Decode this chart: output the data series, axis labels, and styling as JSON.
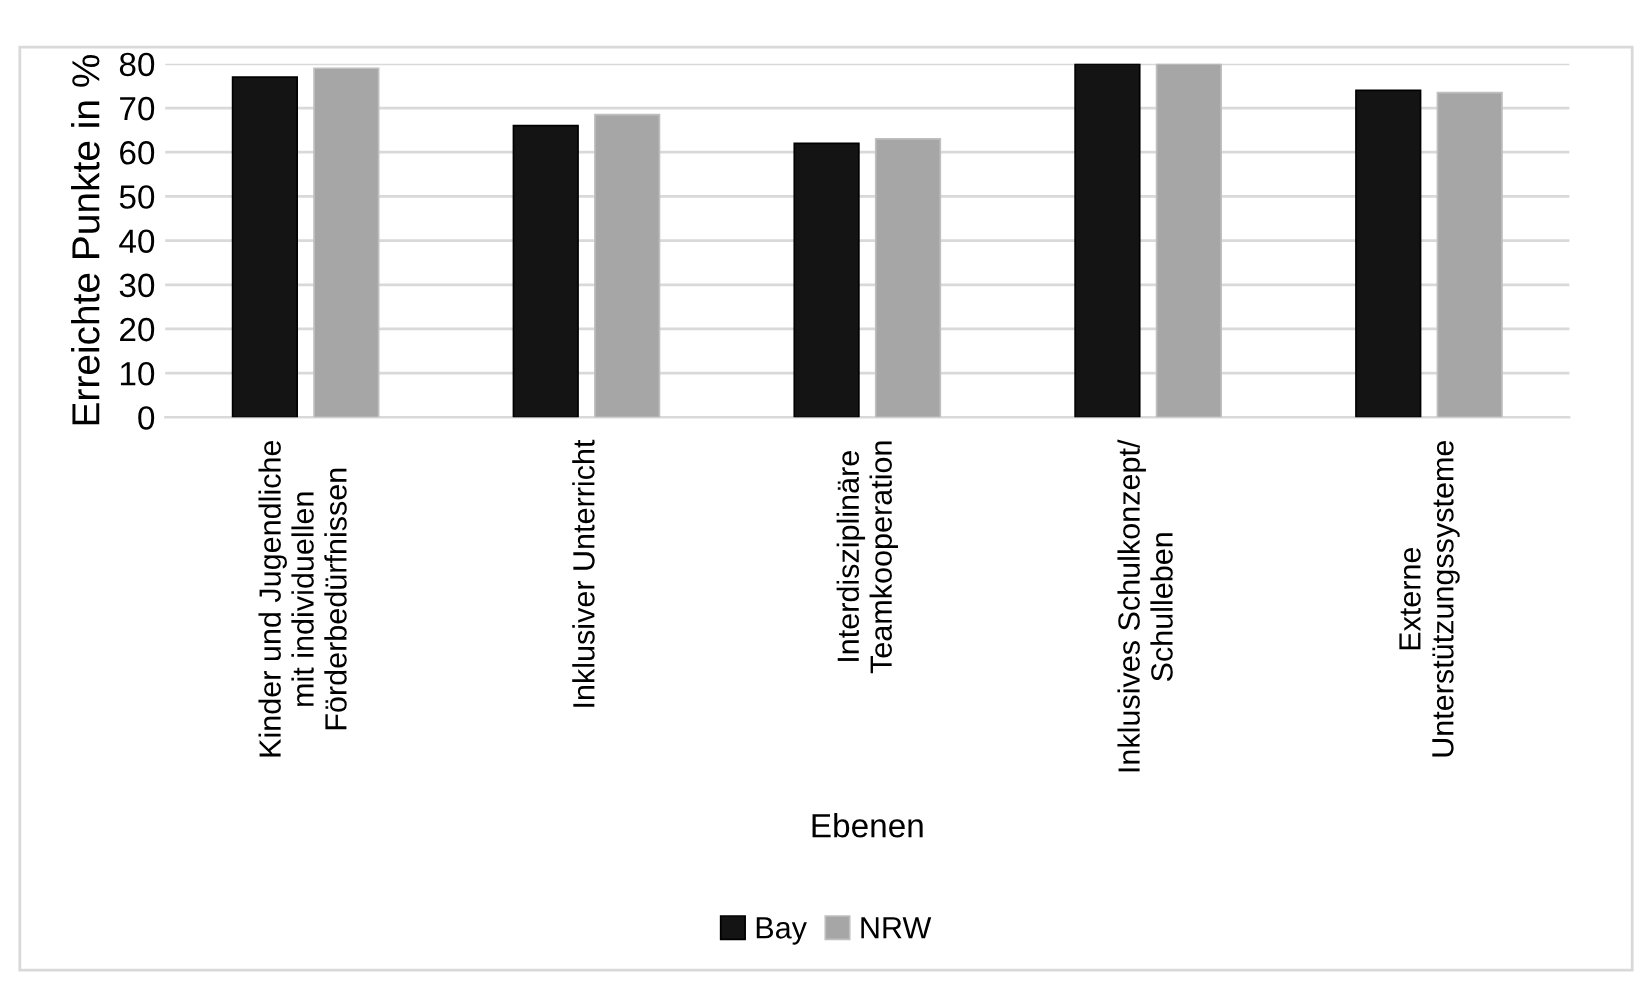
{
  "chart_data": {
    "type": "bar",
    "xlabel": "Ebenen",
    "ylabel": "Erreichte Punkte in %",
    "categories": [
      "Kinder und Jugendliche\nmit individuellen\nFörderbedürfnissen",
      "Inklusiver Unterricht",
      "Interdisziplinäre\nTeamkooperation",
      "Inklusives Schulkonzept/\nSchulleben",
      "Externe\nUnterstützungssysteme"
    ],
    "series": [
      {
        "name": "Bay",
        "color": "#141414",
        "values": [
          77,
          66,
          62,
          80,
          74
        ]
      },
      {
        "name": "NRW",
        "color": "#a6a6a6",
        "values": [
          79,
          68.5,
          63,
          80,
          73.5
        ]
      }
    ],
    "ylim": [
      0,
      80
    ],
    "yticks": [
      0,
      10,
      20,
      30,
      40,
      50,
      60,
      70,
      80
    ],
    "grid": "y",
    "legend": "bottom"
  }
}
